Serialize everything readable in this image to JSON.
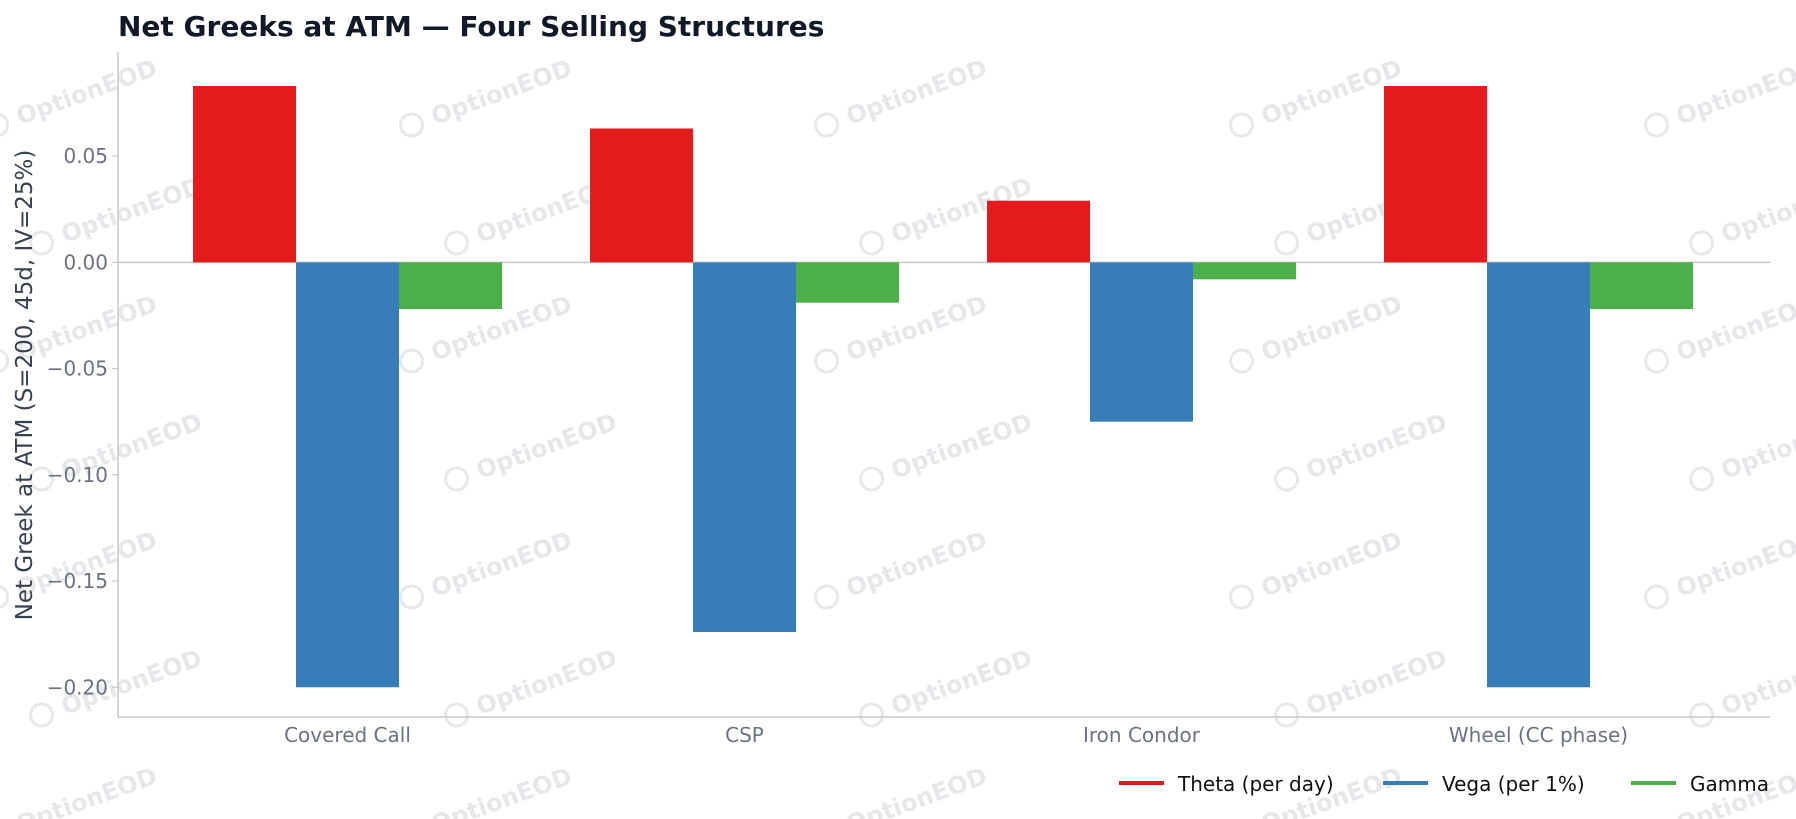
{
  "watermark_text": "OptionEOD",
  "chart_data": {
    "type": "bar",
    "title": "Net Greeks at ATM — Four Selling Structures",
    "xlabel": "",
    "ylabel": "Net Greek at ATM (S=200, 45d, IV=25%)",
    "categories": [
      "Covered Call",
      "CSP",
      "Iron Condor",
      "Wheel (CC phase)"
    ],
    "series": [
      {
        "name": "Theta (per day)",
        "color": "#e41a1c",
        "values": [
          0.083,
          0.063,
          0.029,
          0.083
        ]
      },
      {
        "name": "Vega (per 1%)",
        "color": "#377eb8",
        "values": [
          -0.2,
          -0.174,
          -0.075,
          -0.2
        ]
      },
      {
        "name": "Gamma",
        "color": "#4daf4a",
        "values": [
          -0.022,
          -0.019,
          -0.008,
          -0.022
        ]
      }
    ],
    "yticks": [
      "0.05",
      "0.00",
      "−0.05",
      "−0.10",
      "−0.15",
      "−0.20"
    ],
    "ytick_values": [
      0.05,
      0.0,
      -0.05,
      -0.1,
      -0.15,
      -0.2
    ],
    "ylim": [
      -0.214,
      0.099
    ],
    "grid": false,
    "legend_position": "bottom-right",
    "colors": {
      "axis": "#c8c8c8",
      "zero_line": "#c8c8c8"
    }
  }
}
